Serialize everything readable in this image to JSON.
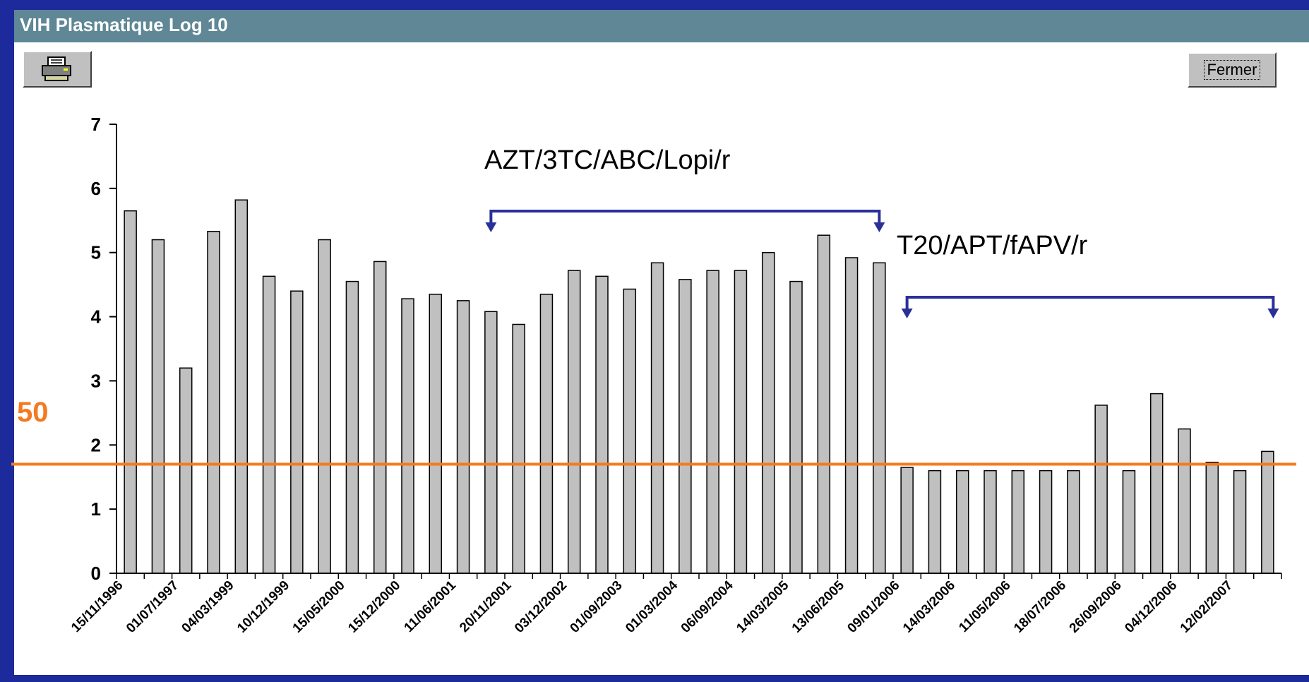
{
  "window": {
    "title": "VIH Plasmatique Log 10"
  },
  "toolbar": {
    "print_icon": "printer-icon",
    "close_label": "Fermer"
  },
  "colors": {
    "bar": "#c0c0c0",
    "threshold": "#f47a20",
    "arrow": "#2b2f9a",
    "titlebar": "#5f8796",
    "frame": "#1c2a9c"
  },
  "chart_data": {
    "type": "bar",
    "title": "",
    "xlabel": "",
    "ylabel": "",
    "ylim": [
      0,
      7
    ],
    "yticks": [
      0,
      1,
      2,
      3,
      4,
      5,
      6,
      7
    ],
    "values": [
      5.65,
      5.2,
      3.2,
      5.33,
      5.82,
      4.63,
      4.4,
      5.2,
      4.55,
      4.86,
      4.28,
      4.35,
      4.25,
      4.08,
      3.88,
      4.35,
      4.72,
      4.63,
      4.43,
      4.84,
      4.58,
      4.72,
      4.72,
      5.0,
      4.55,
      5.27,
      4.92,
      4.84,
      1.65,
      1.6,
      1.6,
      1.6,
      1.6,
      1.6,
      1.6,
      2.62,
      1.6,
      2.8,
      2.25,
      1.73,
      1.6,
      1.9
    ],
    "x_tick_labels": [
      "15/11/1996",
      "01/07/1997",
      "04/03/1999",
      "10/12/1999",
      "15/05/2000",
      "15/12/2000",
      "11/06/2001",
      "20/11/2001",
      "03/12/2002",
      "01/09/2003",
      "01/03/2004",
      "06/09/2004",
      "14/03/2005",
      "13/06/2005",
      "09/01/2006",
      "14/03/2006",
      "11/05/2006",
      "18/07/2006",
      "26/09/2006",
      "04/12/2006",
      "12/02/2007"
    ],
    "threshold": {
      "value": 1.7,
      "label": "50"
    },
    "annotations": [
      {
        "text": "AZT/3TC/ABC/Lopi/r",
        "from_bar": 13,
        "to_bar": 27
      },
      {
        "text": "T20/APT/fAPV/r",
        "from_bar": 28,
        "to_bar": 41
      }
    ],
    "grid": false
  }
}
